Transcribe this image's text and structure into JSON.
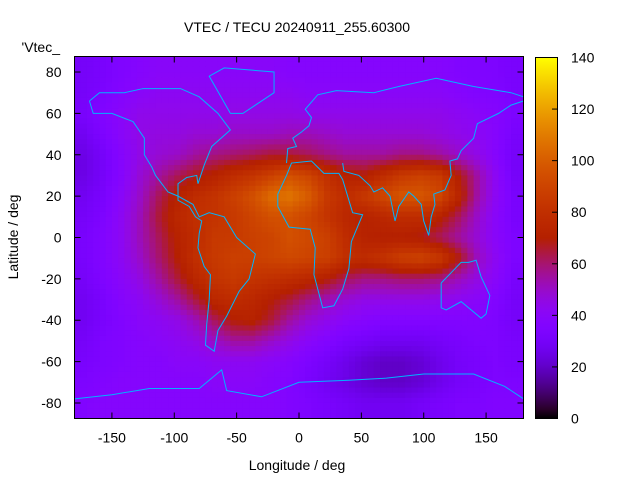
{
  "chart_data": {
    "type": "heatmap",
    "title": "VTEC / TECU 20240911_255.60300",
    "xlabel": "Longitude / deg",
    "ylabel": "Latitude / deg",
    "legend_label": "'Vtec_",
    "legend_placement": "top-left",
    "xlim": [
      -180,
      180
    ],
    "ylim": [
      -87.5,
      87.5
    ],
    "cblim": [
      0,
      140
    ],
    "xticks": [
      "-150",
      "-100",
      "-50",
      "0",
      "50",
      "100",
      "150"
    ],
    "yticks": [
      "-80",
      "-60",
      "-40",
      "-20",
      "0",
      "20",
      "40",
      "60",
      "80"
    ],
    "cbticks": [
      "0",
      "20",
      "40",
      "60",
      "80",
      "100",
      "120",
      "140"
    ],
    "colormap": "black-purple-red-yellow",
    "coastline_color": "#00b4ff",
    "lon": [
      -172.5,
      -157.5,
      -142.5,
      -127.5,
      -112.5,
      -97.5,
      -82.5,
      -67.5,
      -52.5,
      -37.5,
      -22.5,
      -7.5,
      7.5,
      22.5,
      37.5,
      52.5,
      67.5,
      82.5,
      97.5,
      112.5,
      127.5,
      142.5,
      157.5,
      172.5
    ],
    "lat": [
      80,
      70,
      60,
      50,
      40,
      30,
      20,
      10,
      0,
      -10,
      -20,
      -30,
      -40,
      -50,
      -60,
      -70,
      -80
    ],
    "values": [
      [
        30,
        32,
        35,
        38,
        40,
        40,
        40,
        40,
        40,
        40,
        40,
        38,
        38,
        38,
        38,
        38,
        38,
        38,
        38,
        38,
        36,
        35,
        34,
        32
      ],
      [
        30,
        33,
        37,
        40,
        42,
        42,
        42,
        42,
        42,
        42,
        42,
        42,
        40,
        40,
        40,
        40,
        40,
        40,
        40,
        40,
        38,
        36,
        35,
        32
      ],
      [
        32,
        36,
        40,
        44,
        44,
        44,
        44,
        44,
        45,
        45,
        45,
        45,
        44,
        44,
        44,
        44,
        44,
        44,
        44,
        44,
        42,
        40,
        38,
        34
      ],
      [
        28,
        34,
        40,
        45,
        46,
        46,
        48,
        48,
        50,
        50,
        50,
        52,
        52,
        50,
        48,
        48,
        48,
        48,
        48,
        46,
        44,
        42,
        38,
        32
      ],
      [
        25,
        30,
        38,
        45,
        48,
        50,
        55,
        58,
        60,
        62,
        65,
        65,
        62,
        58,
        55,
        55,
        55,
        58,
        58,
        55,
        50,
        45,
        38,
        30
      ],
      [
        25,
        30,
        38,
        48,
        55,
        62,
        68,
        72,
        78,
        82,
        88,
        95,
        90,
        80,
        72,
        70,
        78,
        85,
        88,
        85,
        70,
        55,
        42,
        30
      ],
      [
        28,
        32,
        40,
        50,
        62,
        72,
        78,
        82,
        88,
        95,
        105,
        108,
        100,
        85,
        78,
        85,
        92,
        98,
        98,
        92,
        75,
        55,
        42,
        32
      ],
      [
        30,
        34,
        42,
        52,
        65,
        75,
        80,
        82,
        85,
        90,
        95,
        95,
        90,
        82,
        75,
        72,
        75,
        78,
        78,
        72,
        62,
        50,
        40,
        32
      ],
      [
        32,
        36,
        42,
        52,
        62,
        72,
        78,
        85,
        85,
        88,
        90,
        95,
        92,
        88,
        78,
        72,
        70,
        70,
        68,
        62,
        55,
        48,
        40,
        34
      ],
      [
        32,
        36,
        42,
        50,
        60,
        70,
        80,
        85,
        88,
        88,
        90,
        92,
        90,
        88,
        80,
        78,
        82,
        88,
        90,
        85,
        70,
        52,
        42,
        34
      ],
      [
        30,
        35,
        40,
        46,
        55,
        65,
        75,
        82,
        85,
        82,
        80,
        78,
        75,
        70,
        62,
        58,
        58,
        60,
        60,
        58,
        52,
        46,
        40,
        32
      ],
      [
        28,
        32,
        38,
        42,
        48,
        55,
        65,
        75,
        78,
        75,
        70,
        65,
        58,
        52,
        48,
        45,
        45,
        45,
        45,
        44,
        42,
        40,
        36,
        30
      ],
      [
        28,
        32,
        36,
        40,
        42,
        45,
        52,
        62,
        70,
        72,
        65,
        55,
        48,
        44,
        40,
        38,
        36,
        36,
        36,
        36,
        36,
        36,
        34,
        30
      ],
      [
        30,
        34,
        36,
        38,
        40,
        42,
        45,
        50,
        55,
        55,
        50,
        45,
        40,
        36,
        32,
        30,
        28,
        28,
        28,
        30,
        32,
        34,
        34,
        32
      ],
      [
        32,
        34,
        36,
        38,
        38,
        40,
        40,
        42,
        42,
        42,
        40,
        38,
        34,
        30,
        26,
        22,
        20,
        20,
        22,
        26,
        30,
        32,
        34,
        32
      ],
      [
        34,
        36,
        38,
        38,
        38,
        38,
        38,
        40,
        40,
        40,
        38,
        36,
        32,
        28,
        25,
        22,
        20,
        20,
        22,
        26,
        30,
        32,
        34,
        34
      ],
      [
        36,
        38,
        38,
        38,
        38,
        38,
        38,
        38,
        38,
        38,
        38,
        36,
        34,
        32,
        30,
        28,
        28,
        28,
        30,
        32,
        34,
        34,
        36,
        36
      ]
    ]
  }
}
